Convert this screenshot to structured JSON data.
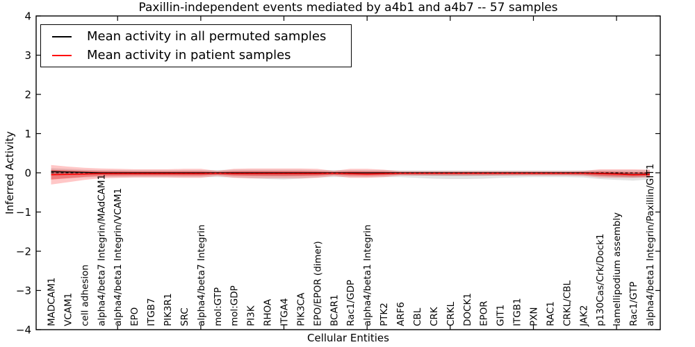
{
  "chart_data": {
    "type": "line",
    "title": "Paxillin-independent events mediated by a4b1 and a4b7 -- 57 samples",
    "xlabel": "Cellular Entities",
    "ylabel": "Inferred Activity",
    "ylim": [
      -4,
      4
    ],
    "yticks": [
      -4,
      -3,
      -2,
      -1,
      0,
      1,
      2,
      3,
      4
    ],
    "xtick_positions": [
      5,
      10,
      15,
      20,
      25,
      30,
      35
    ],
    "grid": false,
    "legend_position": "upper left",
    "zero_reference_line": {
      "y": 0,
      "style": "dashed",
      "color": "#000000"
    },
    "categories": [
      "MADCAM1",
      "VCAM1",
      "cell adhesion",
      "alpha4/beta7 Integrin/MAdCAM1",
      "alpha4/beta1 Integrin/VCAM1",
      "EPO",
      "ITGB7",
      "PIK3R1",
      "SRC",
      "alpha4/beta7 Integrin",
      "mol:GTP",
      "mol:GDP",
      "PI3K",
      "RHOA",
      "ITGA4",
      "PIK3CA",
      "EPO/EPOR (dimer)",
      "BCAR1",
      "Rac1/GDP",
      "alpha4/beta1 Integrin",
      "PTK2",
      "ARF6",
      "CBL",
      "CRK",
      "CRKL",
      "DOCK1",
      "EPOR",
      "GIT1",
      "ITGB1",
      "PXN",
      "RAC1",
      "CRKL/CBL",
      "JAK2",
      "p130Cas/Crk/Dock1",
      "lamellipodium assembly",
      "Rac1/GTP",
      "alpha4/beta1 Integrin/Paxillin/GIT1"
    ],
    "series": [
      {
        "name": "Mean activity in all permuted samples",
        "color": "#000000",
        "band_color": "#000000",
        "band_alpha": 0.11,
        "values": [
          0.03,
          0.02,
          0.01,
          0,
          0,
          0,
          0,
          0,
          0,
          0,
          0,
          0,
          0,
          0,
          0,
          0,
          0,
          0,
          0,
          0,
          0,
          0,
          0,
          0,
          0,
          0,
          0,
          0,
          0,
          0,
          0,
          0,
          0,
          -0.01,
          -0.02,
          -0.04,
          -0.03
        ],
        "band_upper": [
          0.12,
          0.1,
          0.08,
          0.07,
          0.07,
          0.07,
          0.07,
          0.07,
          0.07,
          0.07,
          0.07,
          0.08,
          0.08,
          0.08,
          0.08,
          0.08,
          0.07,
          0.07,
          0.07,
          0.07,
          0.07,
          0.06,
          0.06,
          0.06,
          0.06,
          0.06,
          0.06,
          0.06,
          0.06,
          0.06,
          0.06,
          0.06,
          0.06,
          0.07,
          0.07,
          0.07,
          0.07
        ],
        "band_lower": [
          -0.16,
          -0.14,
          -0.12,
          -0.11,
          -0.11,
          -0.11,
          -0.11,
          -0.11,
          -0.11,
          -0.11,
          -0.11,
          -0.12,
          -0.14,
          -0.16,
          -0.17,
          -0.15,
          -0.12,
          -0.11,
          -0.11,
          -0.11,
          -0.11,
          -0.11,
          -0.13,
          -0.15,
          -0.16,
          -0.16,
          -0.15,
          -0.13,
          -0.12,
          -0.11,
          -0.11,
          -0.11,
          -0.12,
          -0.16,
          -0.18,
          -0.2,
          -0.17
        ]
      },
      {
        "name": "Mean activity in patient samples",
        "color": "#ff0000",
        "band_color": "#ff0000",
        "band_alpha": 0.22,
        "values": [
          -0.05,
          -0.04,
          -0.03,
          -0.02,
          -0.02,
          -0.02,
          -0.02,
          -0.02,
          -0.02,
          -0.02,
          -0.01,
          -0.02,
          -0.02,
          -0.02,
          -0.02,
          -0.02,
          -0.02,
          -0.01,
          -0.02,
          -0.03,
          -0.02,
          -0.01,
          -0.01,
          -0.01,
          -0.01,
          -0.01,
          -0.01,
          -0.01,
          -0.01,
          -0.01,
          -0.01,
          -0.01,
          -0.01,
          -0.02,
          -0.03,
          -0.05,
          -0.04
        ],
        "band_upper": [
          0.2,
          0.16,
          0.13,
          0.11,
          0.1,
          0.09,
          0.09,
          0.09,
          0.1,
          0.1,
          0.05,
          0.1,
          0.11,
          0.11,
          0.11,
          0.11,
          0.1,
          0.05,
          0.1,
          0.1,
          0.08,
          0.04,
          0.04,
          0.04,
          0.04,
          0.04,
          0.04,
          0.04,
          0.04,
          0.04,
          0.04,
          0.04,
          0.05,
          0.09,
          0.09,
          0.09,
          0.08
        ],
        "band_lower": [
          -0.3,
          -0.24,
          -0.18,
          -0.14,
          -0.13,
          -0.12,
          -0.12,
          -0.12,
          -0.13,
          -0.13,
          -0.08,
          -0.13,
          -0.14,
          -0.14,
          -0.14,
          -0.14,
          -0.13,
          -0.08,
          -0.13,
          -0.13,
          -0.11,
          -0.07,
          -0.07,
          -0.07,
          -0.07,
          -0.07,
          -0.07,
          -0.07,
          -0.07,
          -0.07,
          -0.07,
          -0.07,
          -0.08,
          -0.12,
          -0.13,
          -0.13,
          -0.12
        ]
      }
    ]
  }
}
